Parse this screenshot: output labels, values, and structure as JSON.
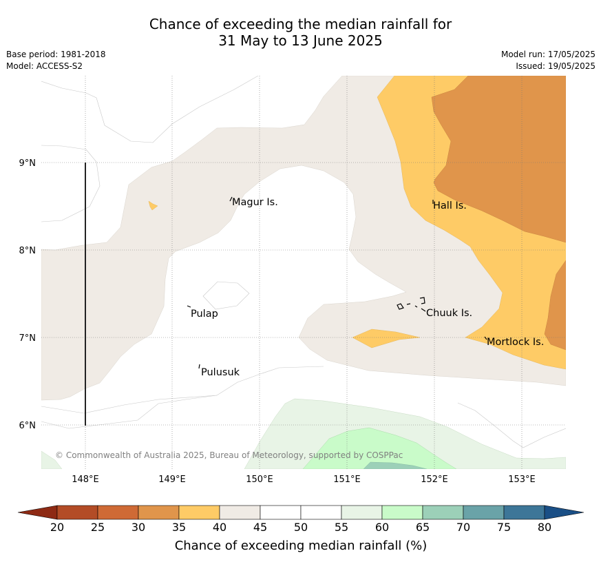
{
  "header": {
    "title_line1": "Chance of exceeding the median rainfall for",
    "title_line2": "31 May to 13 June 2025",
    "base_period": "Base period: 1981-2018",
    "model": "Model: ACCESS-S2",
    "model_run": "Model run: 17/05/2025",
    "issued": "Issued: 19/05/2025"
  },
  "map": {
    "lon_ticks": [
      "148°E",
      "149°E",
      "150°E",
      "151°E",
      "152°E",
      "153°E"
    ],
    "lat_ticks": [
      "9°N",
      "8°N",
      "7°N",
      "6°N"
    ],
    "places": [
      "Magur Is.",
      "Hall Is.",
      "Pulap",
      "Chuuk Is.",
      "Mortlock Is.",
      "Pulusuk"
    ],
    "copyright": "© Commonwealth of Australia 2025, Bureau of Meteorology, supported by COSPPac"
  },
  "colorbar": {
    "title": "Chance of exceeding median rainfall (%)",
    "ticks": [
      "20",
      "25",
      "30",
      "35",
      "40",
      "45",
      "50",
      "55",
      "60",
      "65",
      "70",
      "75",
      "80"
    ],
    "colors": [
      "#b34c26",
      "#cf6a35",
      "#e0954b",
      "#fecb66",
      "#f0ebe5",
      "#ffffff",
      "#ffffff",
      "#e8f4e6",
      "#c9fbc9",
      "#9cd0b8",
      "#6aa3a8",
      "#3d7698"
    ],
    "under_color": "#8e2a14",
    "over_color": "#1a4f86"
  }
}
